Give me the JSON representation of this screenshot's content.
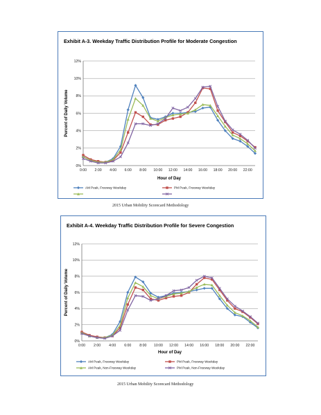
{
  "captions": [
    "2015 Urban Mobility Scorecard Methodology",
    "2015 Urban Mobility Scorecard Methodology"
  ],
  "chart_data": [
    {
      "type": "line",
      "title": "Exhibit A-3.  Weekday Traffic Distribution Profile for Moderate Congestion",
      "xlabel": "Hour of Day",
      "ylabel": "Percent of Daily Volume",
      "x": [
        0,
        1,
        2,
        3,
        4,
        5,
        6,
        7,
        8,
        9,
        10,
        11,
        12,
        13,
        14,
        15,
        16,
        17,
        18,
        19,
        20,
        21,
        22,
        23
      ],
      "x_tick_labels": [
        "0:00",
        "2:00",
        "4:00",
        "6:00",
        "8:00",
        "10:00",
        "12:00",
        "14:00",
        "16:00",
        "18:00",
        "20:00",
        "22:00"
      ],
      "y_tick_labels": [
        "0%",
        "2%",
        "4%",
        "6%",
        "8%",
        "10%",
        "12%"
      ],
      "ylim": [
        0,
        12
      ],
      "xlim": [
        0,
        23
      ],
      "grid": true,
      "legend_position": "bottom",
      "series": [
        {
          "name": "AM Peak, Freeway Weekday",
          "color": "#4f81bd",
          "marker": "diamond",
          "values": [
            1.0,
            0.6,
            0.4,
            0.4,
            0.8,
            2.2,
            6.4,
            9.2,
            7.8,
            5.5,
            5.3,
            5.6,
            6.0,
            6.0,
            6.1,
            6.2,
            6.6,
            6.7,
            5.2,
            4.0,
            3.1,
            2.8,
            2.2,
            1.4
          ]
        },
        {
          "name": "PM Peak, Freeway Weekday",
          "color": "#c0504d",
          "marker": "square",
          "values": [
            1.2,
            0.7,
            0.5,
            0.4,
            0.6,
            1.5,
            3.8,
            6.1,
            5.6,
            4.7,
            4.7,
            5.2,
            5.4,
            5.6,
            6.1,
            7.2,
            8.9,
            8.8,
            6.3,
            5.0,
            3.8,
            3.4,
            2.8,
            2.1
          ]
        },
        {
          "name": "",
          "color": "#9bbb59",
          "marker": "triangle",
          "values": [
            1.0,
            0.6,
            0.4,
            0.4,
            0.7,
            1.8,
            5.3,
            7.7,
            6.9,
            5.4,
            5.1,
            5.5,
            5.8,
            5.9,
            6.0,
            6.4,
            7.0,
            6.9,
            5.7,
            4.5,
            3.5,
            3.1,
            2.5,
            1.7
          ]
        },
        {
          "name": "",
          "color": "#8064a2",
          "marker": "x",
          "values": [
            0.8,
            0.5,
            0.3,
            0.3,
            0.5,
            1.0,
            2.6,
            4.8,
            4.8,
            4.6,
            4.8,
            5.4,
            6.6,
            6.3,
            6.7,
            7.7,
            9.0,
            9.1,
            6.8,
            5.1,
            4.1,
            3.6,
            2.9,
            2.0
          ]
        }
      ]
    },
    {
      "type": "line",
      "title": "Exhibit A-4.  Weekday Traffic Distribution Profile for Severe Congestion",
      "xlabel": "Hour of Day",
      "ylabel": "Percent of Daily Volume",
      "x": [
        0,
        1,
        2,
        3,
        4,
        5,
        6,
        7,
        8,
        9,
        10,
        11,
        12,
        13,
        14,
        15,
        16,
        17,
        18,
        19,
        20,
        21,
        22,
        23
      ],
      "x_tick_labels": [
        "0:00",
        "2:00",
        "4:00",
        "6:00",
        "8:00",
        "10:00",
        "12:00",
        "14:00",
        "16:00",
        "18:00",
        "20:00",
        "22:00"
      ],
      "y_tick_labels": [
        "0%",
        "2%",
        "4%",
        "6%",
        "8%",
        "10%",
        "12%"
      ],
      "ylim": [
        0,
        12
      ],
      "xlim": [
        0,
        23
      ],
      "grid": true,
      "legend_position": "bottom",
      "series": [
        {
          "name": "AM Peak, Freeway Weekday",
          "color": "#4f81bd",
          "marker": "diamond",
          "values": [
            1.0,
            0.6,
            0.4,
            0.4,
            0.8,
            2.4,
            6.0,
            7.9,
            7.3,
            5.9,
            5.4,
            5.6,
            5.9,
            6.0,
            6.1,
            6.3,
            6.5,
            6.5,
            5.2,
            4.0,
            3.2,
            3.0,
            2.3,
            1.6
          ]
        },
        {
          "name": "PM Peak, Freeway Weekday",
          "color": "#c0504d",
          "marker": "square",
          "values": [
            1.1,
            0.7,
            0.5,
            0.4,
            0.6,
            1.6,
            4.5,
            6.6,
            6.3,
            5.2,
            5.0,
            5.3,
            5.5,
            5.6,
            6.0,
            7.0,
            7.8,
            7.6,
            6.3,
            5.0,
            4.0,
            3.6,
            2.9,
            2.1
          ]
        },
        {
          "name": "AM Peak, Non-Freeway Weekday",
          "color": "#9bbb59",
          "marker": "triangle",
          "values": [
            1.0,
            0.6,
            0.4,
            0.4,
            0.7,
            1.9,
            5.3,
            7.2,
            6.7,
            5.6,
            5.2,
            5.5,
            5.8,
            5.9,
            6.1,
            6.6,
            7.0,
            6.9,
            5.6,
            4.4,
            3.5,
            3.1,
            2.5,
            1.7
          ]
        },
        {
          "name": "PM Peak, Non-Freeway Weekday",
          "color": "#8064a2",
          "marker": "x",
          "values": [
            0.9,
            0.6,
            0.4,
            0.3,
            0.6,
            1.3,
            3.8,
            5.6,
            5.5,
            5.0,
            5.2,
            5.6,
            6.2,
            6.3,
            6.6,
            7.5,
            8.0,
            7.8,
            6.5,
            5.2,
            4.3,
            3.7,
            3.0,
            2.2
          ]
        }
      ]
    }
  ]
}
